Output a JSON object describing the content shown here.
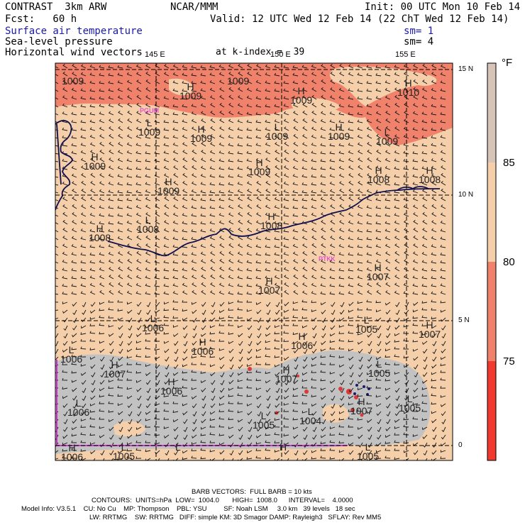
{
  "header": {
    "model": "CONTRAST  3km ARW",
    "org": "NCAR/MMM",
    "init": "Init: 00 UTC Mon 10 Feb 14",
    "fcst": "Fcst:   60 h",
    "valid": "Valid: 12 UTC Wed 12 Feb 14 (22 ChT Wed 12 Feb 14)",
    "field1": "Surface air temperature",
    "field2": "Sea-level pressure",
    "field3": "Horizontal wind vectors",
    "sm1": "sm= 1",
    "sm2": "sm= 4",
    "level": "at k-index =  39"
  },
  "axes": {
    "lon_labels": [
      "145 E",
      "150 E",
      "155 E"
    ],
    "lat_labels": [
      "15 N",
      "10 N",
      "5 N",
      "0"
    ]
  },
  "stations": [
    "PGUM",
    "PTKK"
  ],
  "pressure_labels": [
    {
      "letter": "",
      "value": "1009"
    },
    {
      "letter": "",
      "value": "1009"
    },
    {
      "letter": "H",
      "value": "1009"
    },
    {
      "letter": "H",
      "value": "1009"
    },
    {
      "letter": "H",
      "value": "1010"
    },
    {
      "letter": "L",
      "value": "1009"
    },
    {
      "letter": "H",
      "value": "1009"
    },
    {
      "letter": "L",
      "value": "1009"
    },
    {
      "letter": "H",
      "value": "1009"
    },
    {
      "letter": "L",
      "value": "1009"
    },
    {
      "letter": "H",
      "value": "1009"
    },
    {
      "letter": "H",
      "value": "1009"
    },
    {
      "letter": "H",
      "value": "1009"
    },
    {
      "letter": "H",
      "value": "1008"
    },
    {
      "letter": "H",
      "value": "1008"
    },
    {
      "letter": "L",
      "value": "1008"
    },
    {
      "letter": "H",
      "value": "1008"
    },
    {
      "letter": "H",
      "value": "1008"
    },
    {
      "letter": "H",
      "value": "1007"
    },
    {
      "letter": "H",
      "value": "1007"
    },
    {
      "letter": "L",
      "value": "1006"
    },
    {
      "letter": "L",
      "value": "1005"
    },
    {
      "letter": "H",
      "value": "1007"
    },
    {
      "letter": "H",
      "value": "1006"
    },
    {
      "letter": "H",
      "value": "1006"
    },
    {
      "letter": "L",
      "value": "1006"
    },
    {
      "letter": "H",
      "value": "1007"
    },
    {
      "letter": "L",
      "value": "1005"
    },
    {
      "letter": "H",
      "value": "1006"
    },
    {
      "letter": "H",
      "value": "1007"
    },
    {
      "letter": "L",
      "value": "1006"
    },
    {
      "letter": "L",
      "value": "1005"
    },
    {
      "letter": "L",
      "value": "1004"
    },
    {
      "letter": "H",
      "value": "1007"
    },
    {
      "letter": "L",
      "value": "1005"
    },
    {
      "letter": "H",
      "value": "1006"
    },
    {
      "letter": "L",
      "value": "1005"
    },
    {
      "letter": "L",
      "value": ""
    },
    {
      "letter": "H",
      "value": ""
    },
    {
      "letter": "L",
      "value": "1005"
    }
  ],
  "colorbar": {
    "unit": "°F",
    "labels": [
      "85",
      "80",
      "75"
    ],
    "colors": {
      "above85": "#d6c4b8",
      "80to85": "#f5cfaa",
      "75to80": "#f0826c",
      "below75": "#f03a2e",
      "cloud": "#c2c2c2",
      "land": "#d93a3a"
    }
  },
  "footer": {
    "barb": "BARB VECTORS:  FULL BARB = 10 kts",
    "contours": "CONTOURS:  UNITS=hPa  LOW=  1004.0       HIGH=  1008.0      INTERVAL=    4.0000",
    "info1": "Model Info: V3.5.1    CU: No Cu    MP: Thompson    PBL: YSU         SF: Noah LSM     3.0 km   39 levels   18 sec",
    "info2": "LW: RRTMG    SW: RRTMG   DIFF: simple KM: 3D Smagor DAMP: Rayleigh3   SFLAY: Rev MM5"
  }
}
